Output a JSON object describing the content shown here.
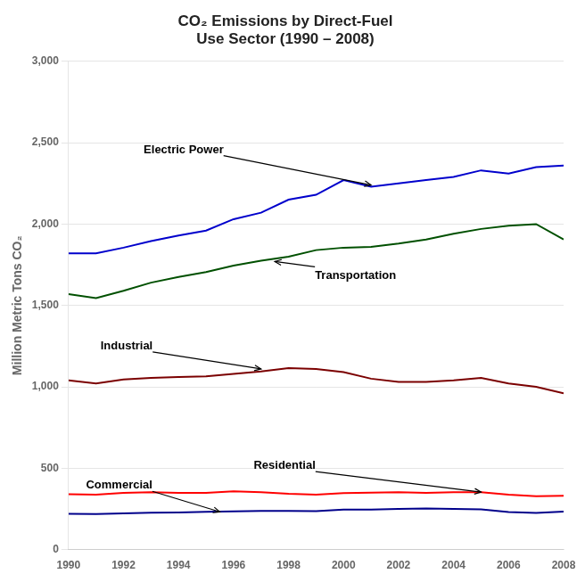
{
  "chart_data": {
    "type": "line",
    "title": "CO₂ Emissions by Direct-Fuel\nUse Sector (1990 – 2008)",
    "y_label": "Million Metric Tons CO₂",
    "x": [
      1990,
      1991,
      1992,
      1993,
      1994,
      1995,
      1996,
      1997,
      1998,
      1999,
      2000,
      2001,
      2002,
      2003,
      2004,
      2005,
      2006,
      2007,
      2008
    ],
    "series": [
      {
        "name": "Electric Power",
        "color": "#0000CC",
        "values": [
          1820,
          1820,
          1855,
          1895,
          1930,
          1960,
          2030,
          2070,
          2150,
          2180,
          2270,
          2230,
          2250,
          2270,
          2290,
          2330,
          2310,
          2350,
          2360
        ]
      },
      {
        "name": "Transportation",
        "color": "#005000",
        "values": [
          1570,
          1545,
          1590,
          1640,
          1675,
          1705,
          1745,
          1775,
          1800,
          1840,
          1855,
          1860,
          1880,
          1905,
          1940,
          1970,
          1990,
          2000,
          1905
        ]
      },
      {
        "name": "Industrial",
        "color": "#7B0000",
        "values": [
          1040,
          1020,
          1045,
          1055,
          1060,
          1065,
          1080,
          1095,
          1115,
          1110,
          1090,
          1050,
          1030,
          1030,
          1040,
          1055,
          1020,
          1000,
          960
        ]
      },
      {
        "name": "Residential",
        "color": "#FF0000",
        "values": [
          340,
          338,
          348,
          352,
          348,
          348,
          358,
          353,
          343,
          338,
          347,
          350,
          353,
          348,
          353,
          353,
          338,
          328,
          330
        ]
      },
      {
        "name": "Commercial",
        "color": "#00008B",
        "values": [
          220,
          218,
          222,
          227,
          228,
          232,
          235,
          237,
          238,
          236,
          245,
          246,
          250,
          252,
          250,
          247,
          230,
          225,
          233
        ]
      }
    ],
    "xlim": [
      1990,
      2008
    ],
    "xticks": [
      1990,
      1992,
      1994,
      1996,
      1998,
      2000,
      2002,
      2004,
      2006,
      2008
    ],
    "ylim": [
      0,
      3000
    ],
    "yticks": [
      0,
      500,
      {
        "value": 1000,
        "label": "1,000"
      },
      {
        "value": 1500,
        "label": "1,500"
      },
      {
        "value": 2000,
        "label": "2,000"
      },
      {
        "value": 2500,
        "label": "2,500"
      },
      {
        "value": 3000,
        "label": "3,000"
      }
    ],
    "grid": "y",
    "annotations": [
      {
        "text": "Electric Power",
        "x": 2001,
        "y": 2240
      },
      {
        "text": "Transportation",
        "x": 1997.5,
        "y": 1770
      },
      {
        "text": "Industrial",
        "x": 1997,
        "y": 1110
      },
      {
        "text": "Residential",
        "x": 2005,
        "y": 353
      },
      {
        "text": "Commercial",
        "x": 1995.5,
        "y": 232
      }
    ]
  }
}
